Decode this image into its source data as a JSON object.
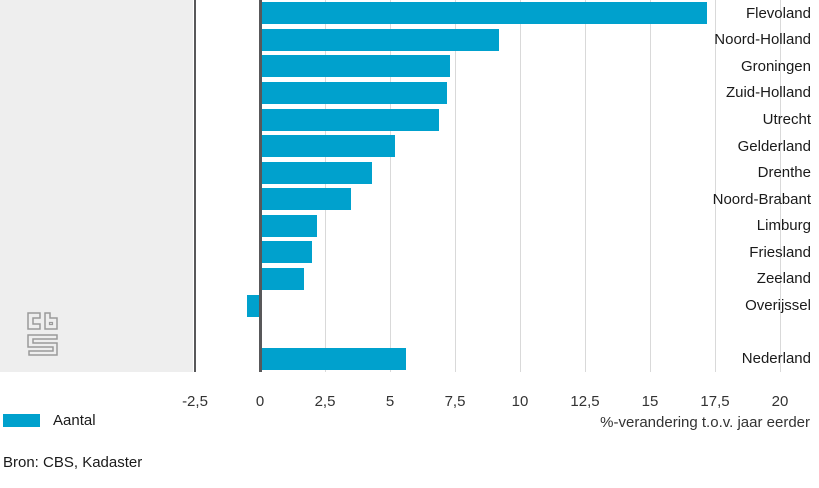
{
  "chart_data": {
    "type": "bar",
    "orientation": "horizontal",
    "categories": [
      "Flevoland",
      "Noord-Holland",
      "Groningen",
      "Zuid-Holland",
      "Utrecht",
      "Gelderland",
      "Drenthe",
      "Noord-Brabant",
      "Limburg",
      "Friesland",
      "Zeeland",
      "Overijssel",
      "Nederland"
    ],
    "values": [
      17.2,
      9.2,
      7.3,
      7.2,
      6.9,
      5.2,
      4.3,
      3.5,
      2.2,
      2.0,
      1.7,
      -0.5,
      5.6
    ],
    "series_name": "Aantal",
    "xlabel": "%-verandering t.o.v. jaar eerder",
    "ylabel": "",
    "xlim": [
      -2.5,
      21.5
    ],
    "ticks": [
      {
        "value": -2.5,
        "label": "-2,5"
      },
      {
        "value": 0,
        "label": "0"
      },
      {
        "value": 2.5,
        "label": "2,5"
      },
      {
        "value": 5,
        "label": "5"
      },
      {
        "value": 7.5,
        "label": "7,5"
      },
      {
        "value": 10,
        "label": "10"
      },
      {
        "value": 12.5,
        "label": "12,5"
      },
      {
        "value": 15,
        "label": "15"
      },
      {
        "value": 17.5,
        "label": "17,5"
      },
      {
        "value": 20,
        "label": "20"
      }
    ],
    "gap_before_last": true,
    "grid": "vertical",
    "legend_position": "bottom-left"
  },
  "legend": {
    "label": "Aantal"
  },
  "axis_title": "%-verandering t.o.v. jaar eerder",
  "source": "Bron: CBS, Kadaster",
  "icons": {
    "logo": "cbs-logo"
  },
  "colors": {
    "bar": "#00a1cd",
    "axis": "#58585a",
    "grid": "#d9d9d9",
    "panel": "#eeeeee",
    "logo": "#9a9a9a"
  }
}
